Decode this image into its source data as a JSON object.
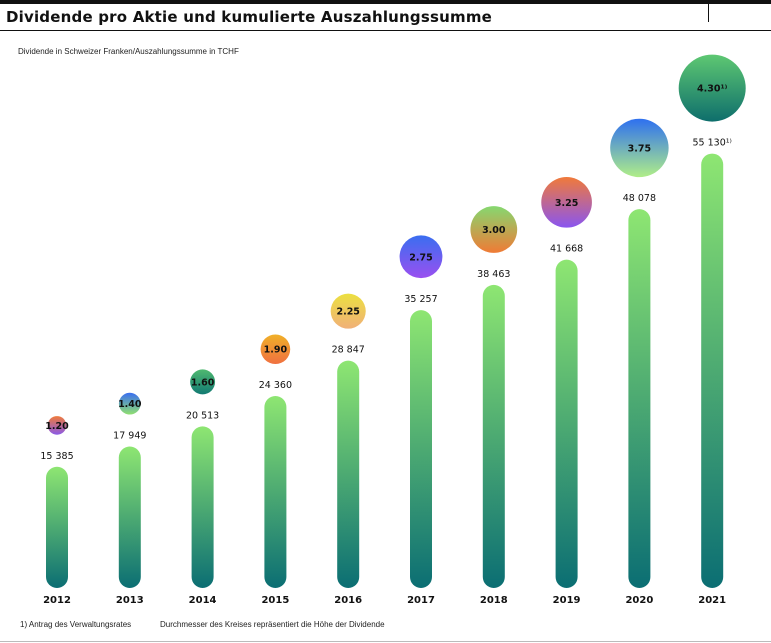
{
  "header": {
    "title": "Dividende pro Aktie und kumulierte Auszahlungssumme",
    "subtitle": "Dividende in Schweizer Franken/Auszahlungssumme in TCHF"
  },
  "footer": {
    "footnote": "1)  Antrag des Verwaltungsrates",
    "note": "Durchmesser des Kreises repräsentiert die Höhe der Dividende"
  },
  "chart_data": {
    "type": "bar",
    "title": "Dividende pro Aktie und kumulierte Auszahlungssumme",
    "subtitle": "Dividende in Schweizer Franken/Auszahlungssumme in TCHF",
    "categories": [
      "2012",
      "2013",
      "2014",
      "2015",
      "2016",
      "2017",
      "2018",
      "2019",
      "2020",
      "2021"
    ],
    "series": [
      {
        "values": [
          15385,
          17949,
          20513,
          24360,
          28847,
          35257,
          38463,
          41668,
          48078,
          55130
        ],
        "labels": [
          "15 385",
          "17 949",
          "20 513",
          "24 360",
          "28 847",
          "35 257",
          "38 463",
          "41 668",
          "48 078",
          "55 130¹⁾"
        ]
      },
      {
        "values": [
          1.2,
          1.4,
          1.6,
          1.9,
          2.25,
          2.75,
          3.0,
          3.25,
          3.75,
          4.3
        ],
        "labels": [
          "1.20",
          "1.40",
          "1.60",
          "1.90",
          "2.25",
          "2.75",
          "3.00",
          "3.25",
          "3.75",
          "4.30¹⁾"
        ]
      }
    ],
    "bubble_gradients": [
      [
        "#f07a3a",
        "#8a5ae8"
      ],
      [
        "#3a6ef0",
        "#90e070"
      ],
      [
        "#4fb870",
        "#127a72"
      ],
      [
        "#f0b028",
        "#f07040"
      ],
      [
        "#ece040",
        "#f0b078"
      ],
      [
        "#3a6ef0",
        "#9a50f0"
      ],
      [
        "#86d870",
        "#f07a35"
      ],
      [
        "#f07a3a",
        "#8a55f0"
      ],
      [
        "#2e70f0",
        "#b0ee88"
      ],
      [
        "#5ec872",
        "#0e6e6c"
      ]
    ],
    "bar_gradient": [
      "#8ee672",
      "#0b6e73"
    ],
    "legend": "none",
    "grid": false
  }
}
